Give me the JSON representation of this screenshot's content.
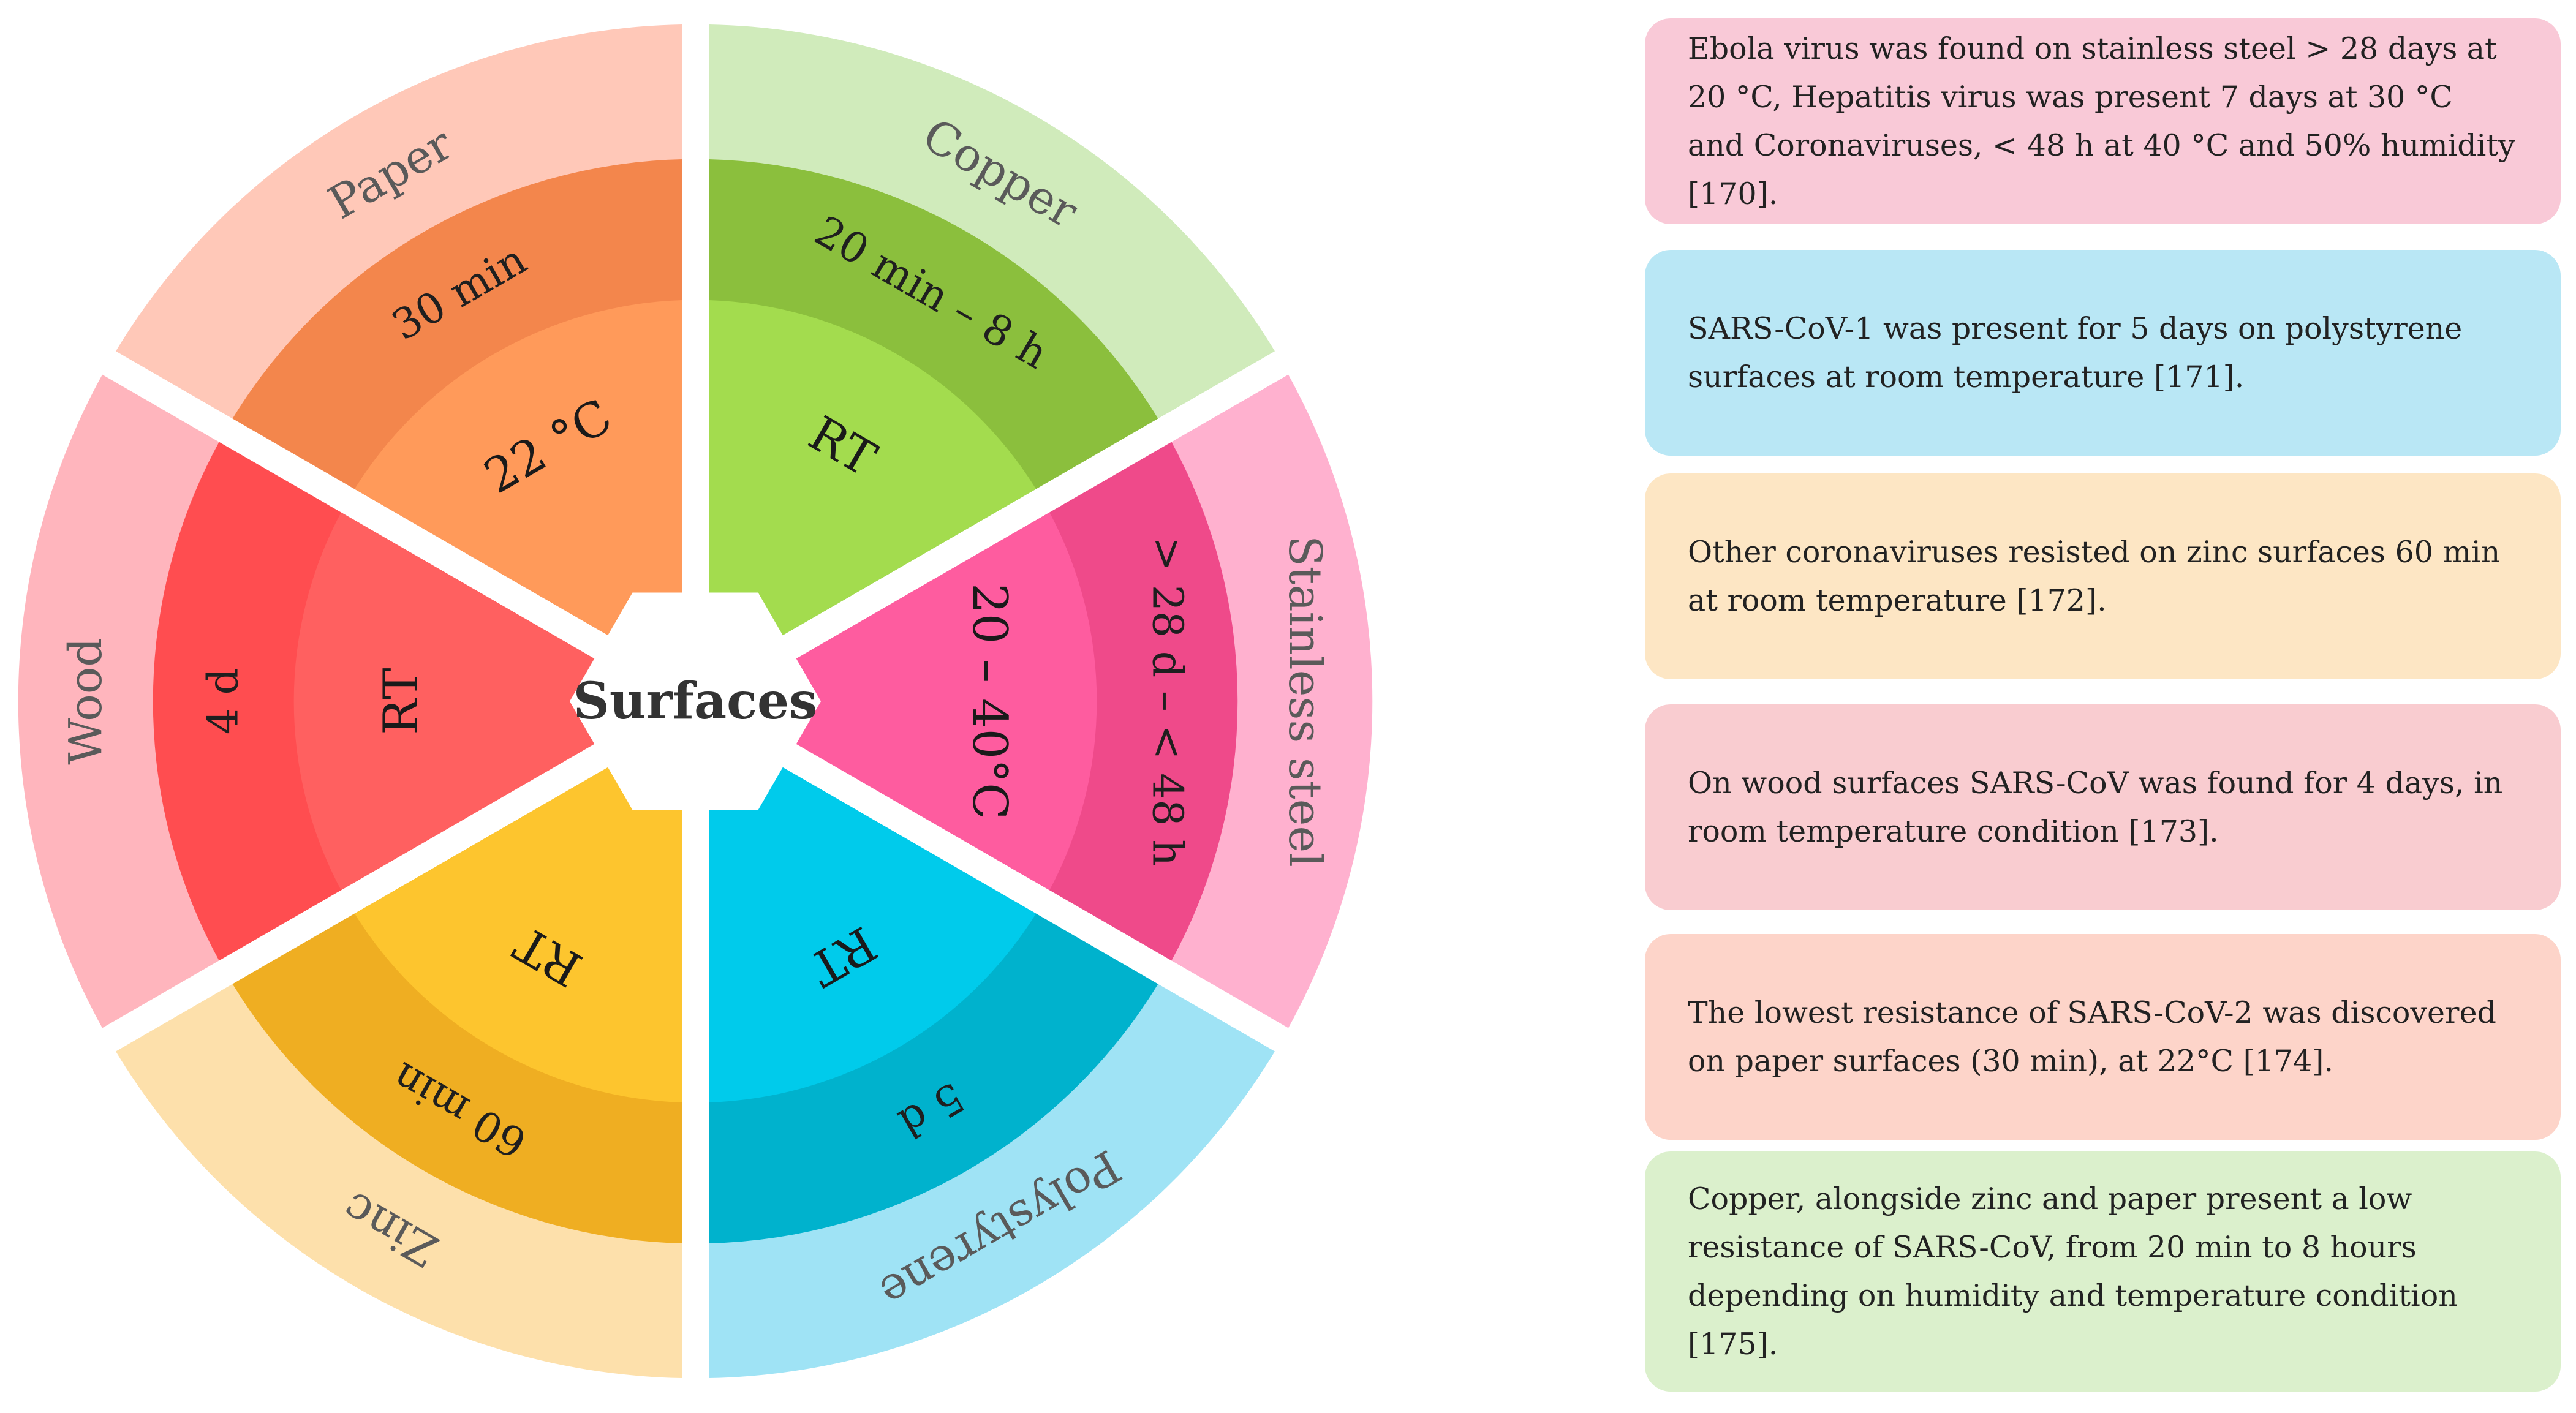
{
  "center_label": "Surfaces",
  "colors": {
    "copper": {
      "outer": "#d0ebbb",
      "middle": "#8bbf3d",
      "inner": "#a3dc4e"
    },
    "stainless": {
      "outer": "#ffb1cf",
      "middle": "#ef4a8a",
      "inner": "#fe5c9f"
    },
    "polystyrene": {
      "outer": "#9fe3f5",
      "middle": "#00b2cd",
      "inner": "#00cbeb"
    },
    "zinc": {
      "outer": "#fde0ab",
      "middle": "#efae22",
      "inner": "#fdc52e"
    },
    "wood": {
      "outer": "#ffb5bd",
      "middle": "#ff4d50",
      "inner": "#ff6060"
    },
    "paper": {
      "outer": "#ffc8b8",
      "middle": "#f3864c",
      "inner": "#ff9a5a"
    }
  },
  "sectors": [
    {
      "key": "copper",
      "name": "Copper",
      "time": "20 min – 8 h",
      "temp": "RT"
    },
    {
      "key": "stainless",
      "name": "Stainless steel",
      "time": "> 28 d – < 48 h",
      "temp": "20 – 40°C"
    },
    {
      "key": "polystyrene",
      "name": "Polystyrene",
      "time": "5 d",
      "temp": "RT"
    },
    {
      "key": "zinc",
      "name": "Zinc",
      "time": "60 min",
      "temp": "RT"
    },
    {
      "key": "wood",
      "name": "Wood",
      "time": "4 d",
      "temp": "RT"
    },
    {
      "key": "paper",
      "name": "Paper",
      "time": "30 min",
      "temp": "22 °C"
    }
  ],
  "panels": [
    {
      "text": "Ebola virus was found on stainless steel > 28 days at 20 °C, Hepatitis virus was present 7 days at 30 °C and Coronaviruses, < 48 h at 40 °C and 50% humidity [170].",
      "color": "#f9c9d7"
    },
    {
      "text": "SARS-CoV-1 was present for 5 days on polystyrene surfaces at room temperature [171].",
      "color": "#b9e7f5"
    },
    {
      "text": "Other coronaviruses resisted on zinc surfaces 60 min at room temperature [172].",
      "color": "#fde6c4"
    },
    {
      "text": "On wood surfaces SARS-CoV was found for 4 days, in room temperature condition [173].",
      "color": "#f9ccd0"
    },
    {
      "text": "The lowest resistance of SARS-CoV-2 was discovered on paper surfaces (30 min), at 22°C [174].",
      "color": "#fdd4c9"
    },
    {
      "text": "Copper, alongside zinc and paper present a low resistance of SARS-CoV, from 20 min to 8 hours depending on humidity and temperature condition [175].",
      "color": "#dbf0cc"
    }
  ]
}
